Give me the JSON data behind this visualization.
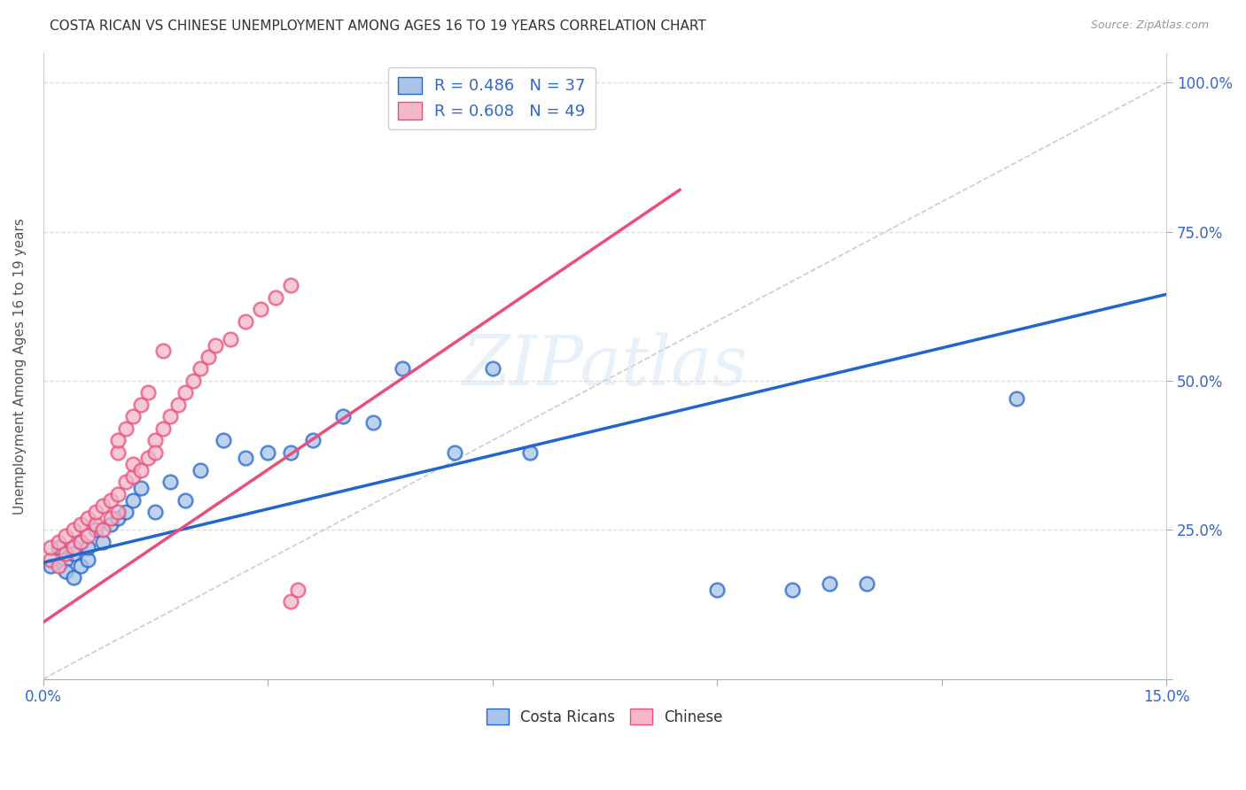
{
  "title": "COSTA RICAN VS CHINESE UNEMPLOYMENT AMONG AGES 16 TO 19 YEARS CORRELATION CHART",
  "source": "Source: ZipAtlas.com",
  "ylabel": "Unemployment Among Ages 16 to 19 years",
  "xlim": [
    0.0,
    0.15
  ],
  "ylim": [
    0.0,
    1.05
  ],
  "xticks": [
    0.0,
    0.03,
    0.06,
    0.09,
    0.12,
    0.15
  ],
  "xticklabels": [
    "0.0%",
    "",
    "",
    "",
    "",
    "15.0%"
  ],
  "yticks_right": [
    0.0,
    0.25,
    0.5,
    0.75,
    1.0
  ],
  "yticklabels_right": [
    "",
    "25.0%",
    "50.0%",
    "75.0%",
    "100.0%"
  ],
  "cr_R": 0.486,
  "cr_N": 37,
  "ch_R": 0.608,
  "ch_N": 49,
  "cr_color": "#aac4e8",
  "ch_color": "#f4b8c8",
  "cr_line_color": "#2266cc",
  "ch_line_color": "#e8507a",
  "diagonal_color": "#cccccc",
  "background_color": "#ffffff",
  "grid_color": "#dddddd",
  "legend_text_color": "#3366cc",
  "title_color": "#333333",
  "costa_ricans_x": [
    0.001,
    0.002,
    0.003,
    0.003,
    0.004,
    0.004,
    0.005,
    0.005,
    0.006,
    0.006,
    0.007,
    0.008,
    0.009,
    0.01,
    0.011,
    0.012,
    0.013,
    0.015,
    0.017,
    0.019,
    0.021,
    0.024,
    0.027,
    0.03,
    0.033,
    0.036,
    0.04,
    0.044,
    0.048,
    0.055,
    0.06,
    0.065,
    0.09,
    0.1,
    0.105,
    0.11,
    0.13
  ],
  "costa_ricans_y": [
    0.19,
    0.22,
    0.2,
    0.18,
    0.21,
    0.17,
    0.23,
    0.19,
    0.2,
    0.22,
    0.25,
    0.23,
    0.26,
    0.27,
    0.28,
    0.3,
    0.32,
    0.28,
    0.33,
    0.3,
    0.35,
    0.4,
    0.37,
    0.38,
    0.38,
    0.4,
    0.44,
    0.43,
    0.52,
    0.38,
    0.52,
    0.38,
    0.15,
    0.15,
    0.16,
    0.16,
    0.47
  ],
  "chinese_x": [
    0.001,
    0.001,
    0.002,
    0.002,
    0.003,
    0.003,
    0.004,
    0.004,
    0.005,
    0.005,
    0.006,
    0.006,
    0.007,
    0.007,
    0.008,
    0.008,
    0.009,
    0.009,
    0.01,
    0.01,
    0.011,
    0.012,
    0.012,
    0.013,
    0.014,
    0.015,
    0.016,
    0.017,
    0.018,
    0.019,
    0.02,
    0.021,
    0.022,
    0.023,
    0.025,
    0.027,
    0.029,
    0.031,
    0.033,
    0.01,
    0.01,
    0.011,
    0.012,
    0.013,
    0.014,
    0.015,
    0.016,
    0.033,
    0.034
  ],
  "chinese_y": [
    0.2,
    0.22,
    0.19,
    0.23,
    0.21,
    0.24,
    0.22,
    0.25,
    0.23,
    0.26,
    0.24,
    0.27,
    0.26,
    0.28,
    0.25,
    0.29,
    0.27,
    0.3,
    0.28,
    0.31,
    0.33,
    0.34,
    0.36,
    0.35,
    0.37,
    0.4,
    0.42,
    0.44,
    0.46,
    0.48,
    0.5,
    0.52,
    0.54,
    0.56,
    0.57,
    0.6,
    0.62,
    0.64,
    0.66,
    0.38,
    0.4,
    0.42,
    0.44,
    0.46,
    0.48,
    0.38,
    0.55,
    0.13,
    0.15
  ],
  "cr_line_x": [
    0.0,
    0.15
  ],
  "cr_line_y": [
    0.195,
    0.645
  ],
  "ch_line_x": [
    0.0,
    0.085
  ],
  "ch_line_y": [
    0.095,
    0.82
  ]
}
